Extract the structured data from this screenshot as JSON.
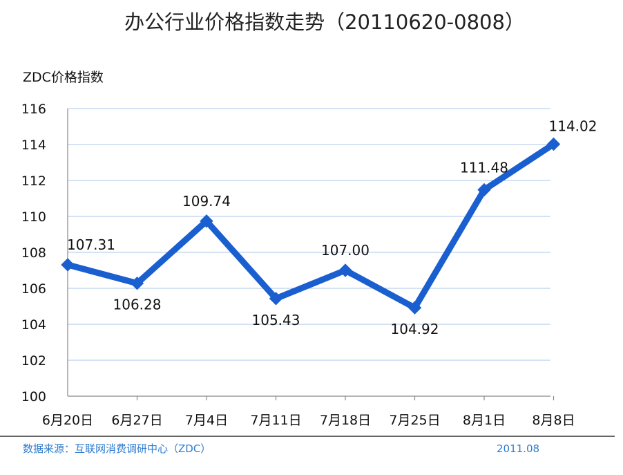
{
  "chart_data": {
    "type": "line",
    "title": "办公行业价格指数走势（20110620-0808）",
    "ylabel": "ZDC价格指数",
    "xlabel": "",
    "categories": [
      "6月20日",
      "6月27日",
      "7月4日",
      "7月11日",
      "7月18日",
      "7月25日",
      "8月1日",
      "8月8日"
    ],
    "series": [
      {
        "values": [
          107.31,
          106.28,
          109.74,
          105.43,
          107.0,
          104.92,
          111.48,
          114.02
        ],
        "data_labels": [
          "107.31",
          "106.28",
          "109.74",
          "105.43",
          "107.00",
          "104.92",
          "111.48",
          "114.02"
        ]
      }
    ],
    "ylim": [
      100,
      116
    ],
    "yticks": [
      100,
      102,
      104,
      106,
      108,
      110,
      112,
      114,
      116
    ],
    "grid": true,
    "legend": "none",
    "colors": {
      "line": "#1a5fd0",
      "grid": "#a8c4e8",
      "axis": "#888888",
      "footer_text": "#2e7bcf",
      "footer_rule": "#333333"
    }
  },
  "footer": {
    "source": "数据来源：互联网消费调研中心（ZDC）",
    "date": "2011.08"
  }
}
